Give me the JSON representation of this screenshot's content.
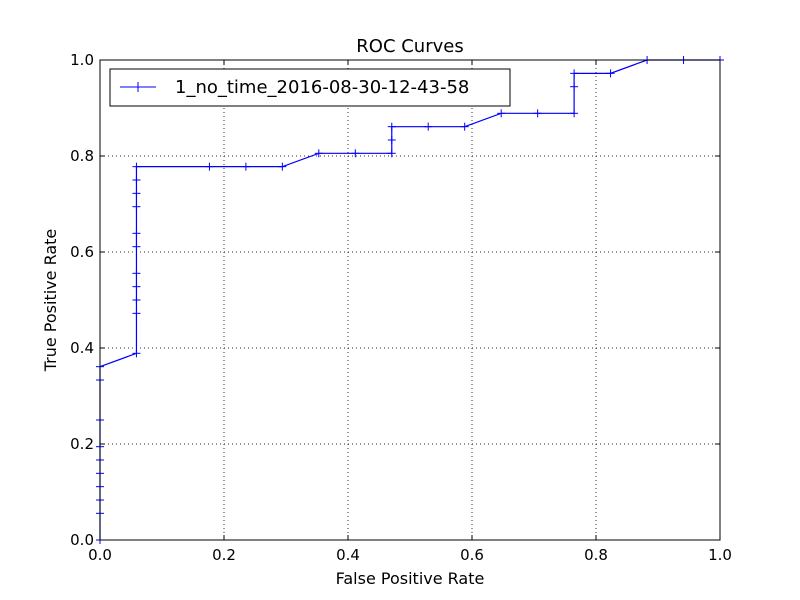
{
  "chart_data": {
    "type": "line",
    "title": "ROC Curves",
    "xlabel": "False Positive Rate",
    "ylabel": "True Positive Rate",
    "xlim": [
      0.0,
      1.0
    ],
    "ylim": [
      0.0,
      1.0
    ],
    "xticks": [
      "0.0",
      "0.2",
      "0.4",
      "0.6",
      "0.8",
      "1.0"
    ],
    "yticks": [
      "0.0",
      "0.2",
      "0.4",
      "0.6",
      "0.8",
      "1.0"
    ],
    "grid": true,
    "legend_position": "top-left",
    "series": [
      {
        "name": "1_no_time_2016-08-30-12-43-58",
        "color": "#0000ff",
        "marker": "+",
        "x": [
          0.0,
          0.0,
          0.0,
          0.0,
          0.0,
          0.0,
          0.0,
          0.0,
          0.0,
          0.0,
          0.0588,
          0.0588,
          0.0588,
          0.0588,
          0.0588,
          0.0588,
          0.0588,
          0.0588,
          0.0588,
          0.0588,
          0.0588,
          0.1765,
          0.2353,
          0.2941,
          0.3529,
          0.4118,
          0.4706,
          0.4706,
          0.4706,
          0.5294,
          0.5882,
          0.6471,
          0.7059,
          0.7647,
          0.7647,
          0.7647,
          0.8235,
          0.8824,
          0.9412,
          1.0
        ],
        "y": [
          0.0,
          0.0556,
          0.0833,
          0.1111,
          0.1389,
          0.1667,
          0.1944,
          0.25,
          0.3333,
          0.3611,
          0.3889,
          0.4722,
          0.5,
          0.5278,
          0.5556,
          0.6111,
          0.6389,
          0.6944,
          0.7222,
          0.75,
          0.7778,
          0.7778,
          0.7778,
          0.7778,
          0.8056,
          0.8056,
          0.8056,
          0.8333,
          0.8611,
          0.8611,
          0.8611,
          0.8889,
          0.8889,
          0.8889,
          0.9444,
          0.9722,
          0.9722,
          1.0,
          1.0,
          1.0
        ]
      }
    ]
  }
}
